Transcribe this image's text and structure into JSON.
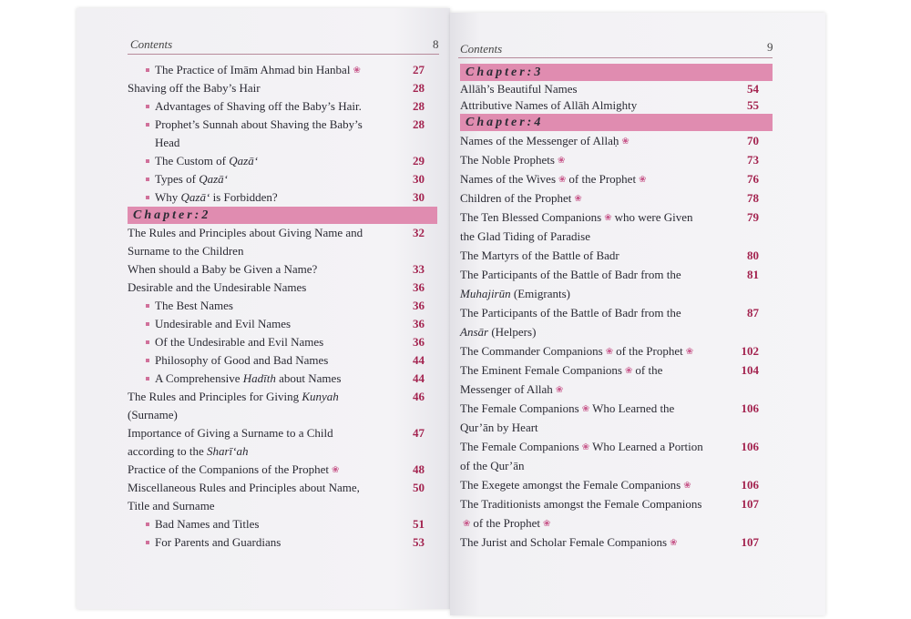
{
  "left_page": {
    "header": "Contents",
    "page_number": "8",
    "sections": [
      {
        "entries": [
          {
            "sub": true,
            "lines": [
              [
                {
                  "t": "The Practice of Imām Ahmad bin Hanbal"
                },
                {
                  "icon": "honorific"
                }
              ]
            ],
            "page": "27"
          },
          {
            "sub": false,
            "lines": [
              [
                {
                  "t": "Shaving off the Baby’s Hair"
                }
              ]
            ],
            "page": "28"
          },
          {
            "sub": true,
            "lines": [
              [
                {
                  "t": "Advantages of Shaving off the Baby’s Hair."
                }
              ]
            ],
            "page": "28"
          },
          {
            "sub": true,
            "lines": [
              [
                {
                  "t": "Prophet’s Sunnah about Shaving the Baby’s"
                }
              ],
              [
                {
                  "t": "Head"
                }
              ]
            ],
            "page": "28"
          },
          {
            "sub": true,
            "lines": [
              [
                {
                  "t": "The Custom of "
                },
                {
                  "t": "Qazā‘",
                  "i": true
                }
              ]
            ],
            "page": "29"
          },
          {
            "sub": true,
            "lines": [
              [
                {
                  "t": "Types of "
                },
                {
                  "t": "Qazā‘",
                  "i": true
                }
              ]
            ],
            "page": "30"
          },
          {
            "sub": true,
            "lines": [
              [
                {
                  "t": "Why "
                },
                {
                  "t": "Qazā‘",
                  "i": true
                },
                {
                  "t": " is Forbidden?"
                }
              ]
            ],
            "page": "30"
          }
        ]
      },
      {
        "chapter": "Chapter:2",
        "entries": [
          {
            "sub": false,
            "lines": [
              [
                {
                  "t": "The Rules and Principles about Giving Name and"
                }
              ],
              [
                {
                  "t": "Surname to the Children"
                }
              ]
            ],
            "page": "32"
          },
          {
            "sub": false,
            "lines": [
              [
                {
                  "t": "When should a Baby be Given a Name?"
                }
              ]
            ],
            "page": "33"
          },
          {
            "sub": false,
            "lines": [
              [
                {
                  "t": "Desirable and the Undesirable Names"
                }
              ]
            ],
            "page": "36"
          },
          {
            "sub": true,
            "lines": [
              [
                {
                  "t": "The Best Names"
                }
              ]
            ],
            "page": "36"
          },
          {
            "sub": true,
            "lines": [
              [
                {
                  "t": "Undesirable and Evil Names"
                }
              ]
            ],
            "page": "36"
          },
          {
            "sub": true,
            "lines": [
              [
                {
                  "t": "Of the Undesirable and Evil Names"
                }
              ]
            ],
            "page": "36"
          },
          {
            "sub": true,
            "lines": [
              [
                {
                  "t": "Philosophy of Good and Bad Names"
                }
              ]
            ],
            "page": "44"
          },
          {
            "sub": true,
            "lines": [
              [
                {
                  "t": "A Comprehensive "
                },
                {
                  "t": "Hadīth",
                  "i": true
                },
                {
                  "t": " about Names"
                }
              ]
            ],
            "page": "44"
          },
          {
            "sub": false,
            "lines": [
              [
                {
                  "t": "The Rules and Principles for Giving "
                },
                {
                  "t": "Kunyah",
                  "i": true
                }
              ],
              [
                {
                  "t": "(Surname)"
                }
              ]
            ],
            "page": "46"
          },
          {
            "sub": false,
            "lines": [
              [
                {
                  "t": "Importance of Giving a Surname to a Child"
                }
              ],
              [
                {
                  "t": "according to the "
                },
                {
                  "t": "Sharī‘ah",
                  "i": true
                }
              ]
            ],
            "page": "47"
          },
          {
            "sub": false,
            "lines": [
              [
                {
                  "t": "Practice of the Companions of the Prophet"
                },
                {
                  "icon": "honorific"
                }
              ]
            ],
            "page": "48"
          },
          {
            "sub": false,
            "lines": [
              [
                {
                  "t": "Miscellaneous Rules and Principles about Name,"
                }
              ],
              [
                {
                  "t": "Title and Surname"
                }
              ]
            ],
            "page": "50"
          },
          {
            "sub": true,
            "lines": [
              [
                {
                  "t": "Bad Names and Titles"
                }
              ]
            ],
            "page": "51"
          },
          {
            "sub": true,
            "lines": [
              [
                {
                  "t": "For Parents and Guardians"
                }
              ]
            ],
            "page": "53"
          }
        ]
      }
    ]
  },
  "right_page": {
    "header": "Contents",
    "page_number": "9",
    "sections": [
      {
        "chapter": "Chapter:3",
        "cls": "ch3",
        "entries": [
          {
            "sub": false,
            "lines": [
              [
                {
                  "t": "Allāh’s Beautiful Names"
                }
              ]
            ],
            "page": "54"
          },
          {
            "sub": false,
            "lines": [
              [
                {
                  "t": "Attributive Names of Allāh Almighty"
                }
              ]
            ],
            "page": "55"
          }
        ]
      },
      {
        "chapter": "Chapter:4",
        "entries": [
          {
            "sub": false,
            "lines": [
              [
                {
                  "t": "Names of the Messenger of Allaḥ"
                },
                {
                  "icon": "honorific"
                }
              ]
            ],
            "page": "70"
          },
          {
            "sub": false,
            "lines": [
              [
                {
                  "t": "The Noble Prophets"
                },
                {
                  "icon": "honorific"
                }
              ]
            ],
            "page": "73"
          },
          {
            "sub": false,
            "lines": [
              [
                {
                  "t": "Names of the Wives"
                },
                {
                  "icon": "honorific"
                },
                {
                  "t": "of the Prophet"
                },
                {
                  "icon": "honorific"
                }
              ]
            ],
            "page": "76"
          },
          {
            "sub": false,
            "lines": [
              [
                {
                  "t": "Children of the Prophet"
                },
                {
                  "icon": "honorific"
                }
              ]
            ],
            "page": "78"
          },
          {
            "sub": false,
            "lines": [
              [
                {
                  "t": "The Ten Blessed Companions"
                },
                {
                  "icon": "honorific"
                },
                {
                  "t": "who were Given"
                }
              ],
              [
                {
                  "t": "the Glad Tiding of Paradise"
                }
              ]
            ],
            "page": "79"
          },
          {
            "sub": false,
            "lines": [
              [
                {
                  "t": "The Martyrs of the Battle of Badr"
                }
              ]
            ],
            "page": "80"
          },
          {
            "sub": false,
            "lines": [
              [
                {
                  "t": "The Participants of the Battle of Badr from the"
                }
              ],
              [
                {
                  "t": "Muhajirūn",
                  "i": true
                },
                {
                  "t": " (Emigrants)"
                }
              ]
            ],
            "page": "81"
          },
          {
            "sub": false,
            "lines": [
              [
                {
                  "t": "The Participants of the Battle of Badr from the"
                }
              ],
              [
                {
                  "t": "Ansār",
                  "i": true
                },
                {
                  "t": " (Helpers)"
                }
              ]
            ],
            "page": "87"
          },
          {
            "sub": false,
            "lines": [
              [
                {
                  "t": "The Commander Companions"
                },
                {
                  "icon": "honorific"
                },
                {
                  "t": "of the Prophet"
                },
                {
                  "icon": "honorific"
                }
              ]
            ],
            "page": "102"
          },
          {
            "sub": false,
            "lines": [
              [
                {
                  "t": "The Eminent Female Companions"
                },
                {
                  "icon": "honorific"
                },
                {
                  "t": "of the"
                }
              ],
              [
                {
                  "t": "Messenger of Allah"
                },
                {
                  "icon": "honorific"
                }
              ]
            ],
            "page": "104"
          },
          {
            "sub": false,
            "lines": [
              [
                {
                  "t": "The Female Companions"
                },
                {
                  "icon": "honorific"
                },
                {
                  "t": "Who Learned the"
                }
              ],
              [
                {
                  "t": "Qur’ān by Heart"
                }
              ]
            ],
            "page": "106"
          },
          {
            "sub": false,
            "lines": [
              [
                {
                  "t": "The Female Companions"
                },
                {
                  "icon": "honorific"
                },
                {
                  "t": "Who Learned a Portion"
                }
              ],
              [
                {
                  "t": "of the Qur’ān"
                }
              ]
            ],
            "page": "106"
          },
          {
            "sub": false,
            "lines": [
              [
                {
                  "t": "The Exegete amongst the Female Companions"
                },
                {
                  "icon": "honorific"
                }
              ]
            ],
            "page": "106"
          },
          {
            "sub": false,
            "lines": [
              [
                {
                  "t": "The Traditionists amongst the Female Companions"
                }
              ],
              [
                {
                  "icon": "honorific"
                },
                {
                  "t": "of the Prophet"
                },
                {
                  "icon": "honorific"
                }
              ]
            ],
            "page": "107"
          },
          {
            "sub": false,
            "lines": [
              [
                {
                  "t": "The Jurist and Scholar Female Companions"
                },
                {
                  "icon": "honorific"
                }
              ]
            ],
            "page": "107"
          }
        ]
      }
    ]
  },
  "colors": {
    "chapter_band": "#e08cb0",
    "page_numbers": "#a3234f",
    "bullet": "#d0709a"
  }
}
